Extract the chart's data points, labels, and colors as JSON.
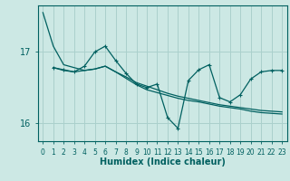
{
  "title": "",
  "xlabel": "Humidex (Indice chaleur)",
  "bg_color": "#cce8e4",
  "grid_color": "#aad0cc",
  "line_color": "#006060",
  "xlim": [
    -0.5,
    23.5
  ],
  "ylim": [
    15.75,
    17.65
  ],
  "yticks": [
    16,
    17
  ],
  "xticks": [
    0,
    1,
    2,
    3,
    4,
    5,
    6,
    7,
    8,
    9,
    10,
    11,
    12,
    13,
    14,
    15,
    16,
    17,
    18,
    19,
    20,
    21,
    22,
    23
  ],
  "series1_x": [
    0,
    1,
    2,
    3,
    4,
    5,
    6,
    7,
    8,
    9,
    10,
    11,
    12,
    13,
    14,
    15,
    16,
    17,
    18,
    19,
    20,
    21,
    22,
    23
  ],
  "series1_y": [
    17.55,
    17.08,
    16.82,
    16.78,
    16.74,
    16.76,
    16.8,
    16.72,
    16.65,
    16.57,
    16.52,
    16.47,
    16.42,
    16.38,
    16.35,
    16.32,
    16.29,
    16.26,
    16.24,
    16.22,
    16.2,
    16.18,
    16.17,
    16.16
  ],
  "series2_x": [
    1,
    2,
    3,
    4,
    5,
    6,
    7,
    8,
    9,
    10,
    11,
    12,
    13,
    14,
    15,
    16,
    17,
    18,
    19,
    20,
    21,
    22,
    23
  ],
  "series2_y": [
    16.78,
    16.75,
    16.72,
    16.8,
    17.0,
    17.08,
    16.88,
    16.7,
    16.55,
    16.5,
    16.55,
    16.08,
    15.93,
    16.6,
    16.75,
    16.82,
    16.36,
    16.3,
    16.4,
    16.62,
    16.72,
    16.74,
    16.74
  ],
  "series3_x": [
    1,
    2,
    3,
    4,
    5,
    6,
    7,
    8,
    9,
    10,
    11,
    12,
    13,
    14,
    15,
    16,
    17,
    18,
    19,
    20,
    21,
    22,
    23
  ],
  "series3_y": [
    16.78,
    16.74,
    16.72,
    16.74,
    16.76,
    16.8,
    16.72,
    16.63,
    16.54,
    16.47,
    16.43,
    16.39,
    16.35,
    16.32,
    16.3,
    16.27,
    16.24,
    16.22,
    16.2,
    16.17,
    16.15,
    16.14,
    16.13
  ]
}
